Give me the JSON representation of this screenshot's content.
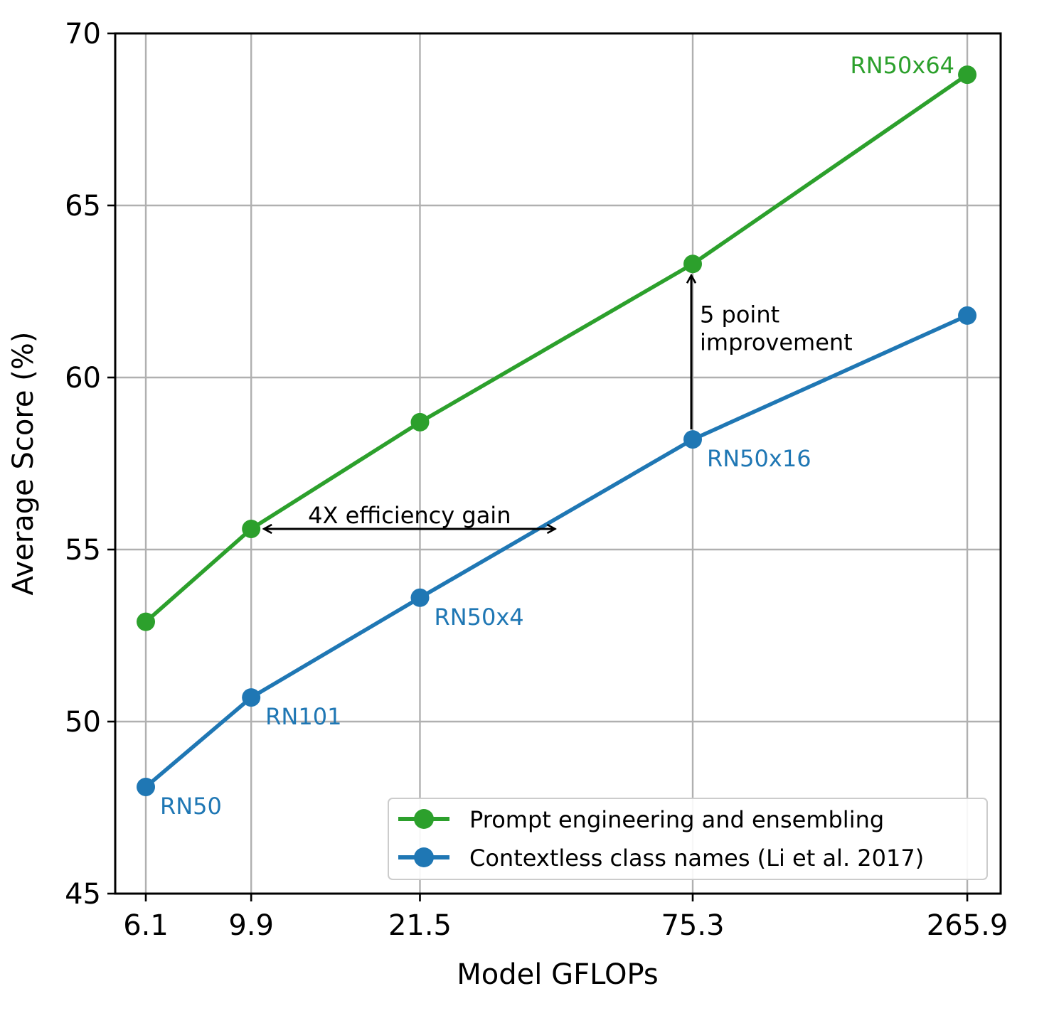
{
  "chart_data": {
    "type": "line",
    "title": "",
    "xlabel": "Model GFLOPs",
    "ylabel": "Average Score (%)",
    "x_scale": "log",
    "x": [
      6.1,
      9.9,
      21.5,
      75.3,
      265.9
    ],
    "x_tick_labels": [
      "6.1",
      "9.9",
      "21.5",
      "75.3",
      "265.9"
    ],
    "xlim": [
      5.3,
      310
    ],
    "ylim": [
      45,
      70
    ],
    "y_ticks": [
      45,
      50,
      55,
      60,
      65,
      70
    ],
    "y_tick_labels": [
      "45",
      "50",
      "55",
      "60",
      "65",
      "70"
    ],
    "grid": true,
    "legend_position": "lower-right",
    "series": [
      {
        "name": "Prompt engineering and ensembling",
        "color": "#2ca02c",
        "values": [
          52.9,
          55.6,
          58.7,
          63.3,
          68.8
        ]
      },
      {
        "name": "Contextless class names (Li et al. 2017)",
        "color": "#1f77b4",
        "values": [
          48.1,
          50.7,
          53.6,
          58.2,
          61.8
        ]
      }
    ],
    "point_labels": [
      {
        "text": "RN50",
        "x": 6.1,
        "series": 1,
        "color": "#1f77b4"
      },
      {
        "text": "RN101",
        "x": 9.9,
        "series": 1,
        "color": "#1f77b4"
      },
      {
        "text": "RN50x4",
        "x": 21.5,
        "series": 1,
        "color": "#1f77b4"
      },
      {
        "text": "RN50x16",
        "x": 75.3,
        "series": 1,
        "color": "#1f77b4"
      },
      {
        "text": "RN50x64",
        "x": 265.9,
        "series": 0,
        "color": "#2ca02c"
      }
    ],
    "annotations": [
      {
        "type": "double-arrow-horizontal",
        "text": "4X efficiency gain",
        "x_from": 9.9,
        "x_to": 40,
        "y": 55.6
      },
      {
        "type": "arrow-vertical",
        "text": [
          "5 point",
          "improvement"
        ],
        "x": 75.3,
        "y_from": 58.2,
        "y_to": 63.3
      }
    ]
  }
}
